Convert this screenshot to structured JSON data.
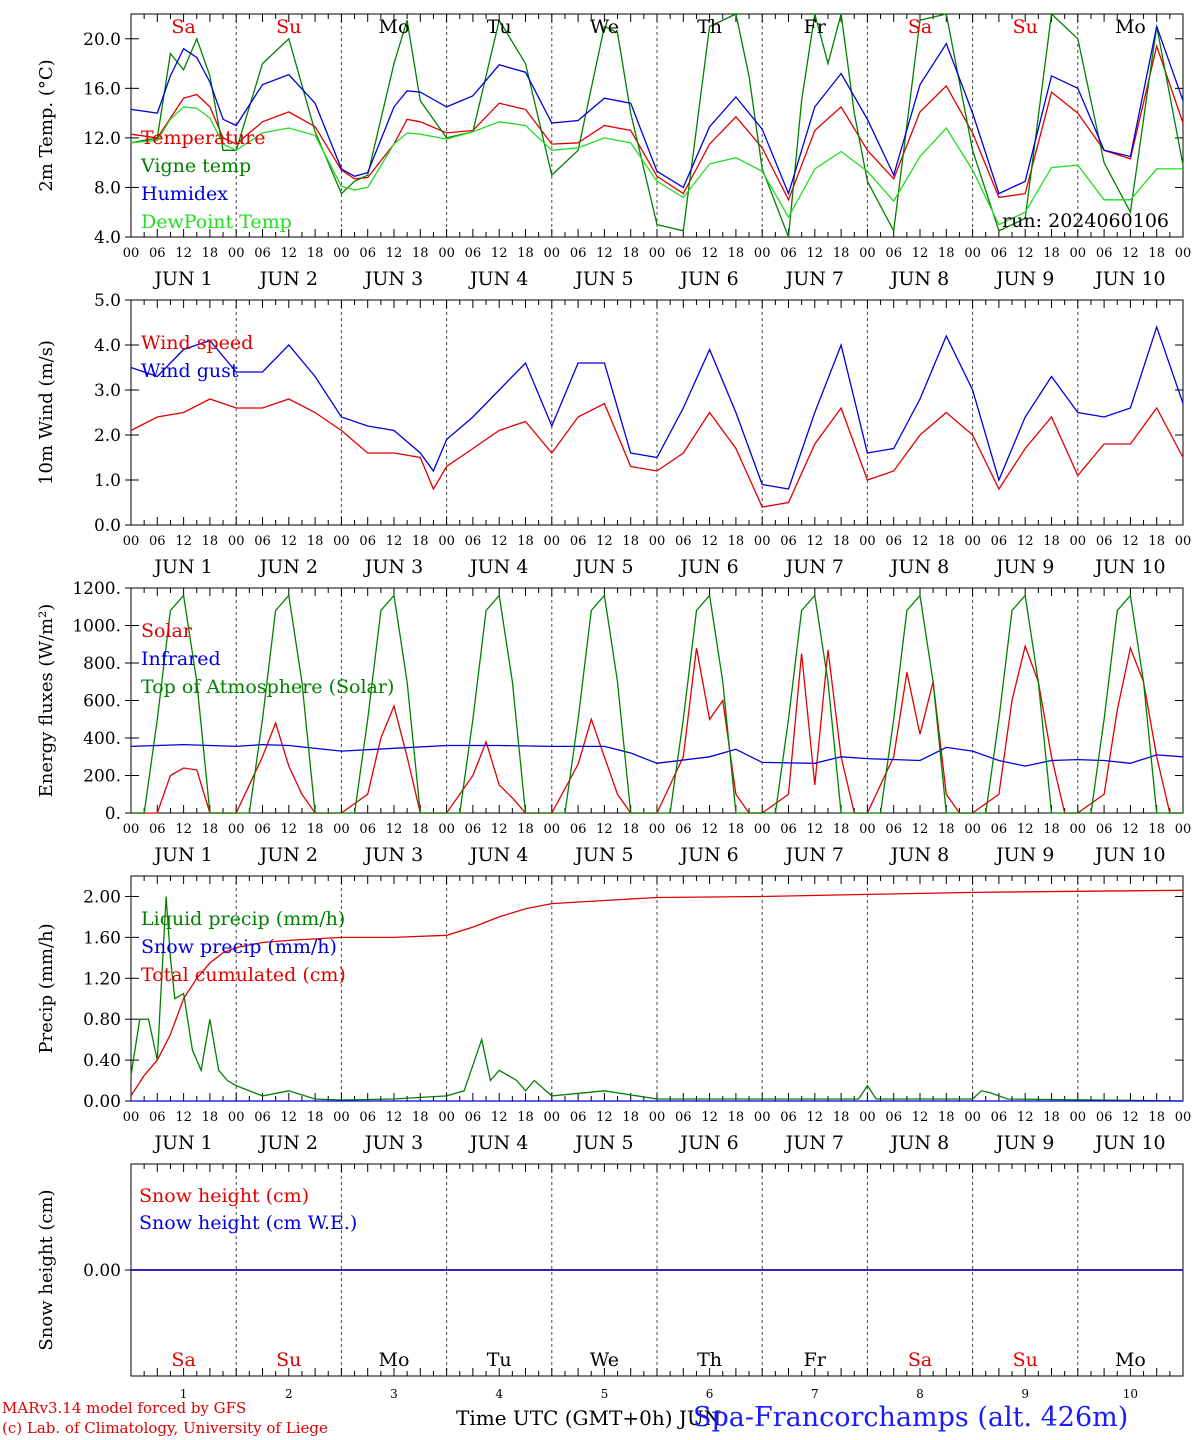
{
  "footer": {
    "credit_line1": "MARv3.14 model forced by GFS",
    "credit_line2": "(c) Lab. of Climatology, University of Liege",
    "xaxis_label": "Time UTC (GMT+0h) JUN",
    "station": "Spa-Francorchamps (alt. 426m)"
  },
  "days": {
    "numbers": [
      "1",
      "2",
      "3",
      "4",
      "5",
      "6",
      "7",
      "8",
      "9",
      "10"
    ],
    "month": "JUN",
    "weekdays": [
      "Sa",
      "Su",
      "Mo",
      "Tu",
      "We",
      "Th",
      "Fr",
      "Sa",
      "Su",
      "Mo"
    ],
    "weekday_colors": [
      "#e00000",
      "#e00000",
      "#000000",
      "#000000",
      "#000000",
      "#000000",
      "#000000",
      "#e00000",
      "#e00000",
      "#000000"
    ],
    "hour_ticks": [
      "00",
      "06",
      "12",
      "18"
    ],
    "final_tick": "00"
  },
  "chart_data": [
    {
      "type": "line",
      "ylabel": "2m Temp. (°C)",
      "ylim": [
        4.0,
        22.0
      ],
      "yticks": [
        "4.0",
        "8.0",
        "12.0",
        "16.0",
        "20.0"
      ],
      "annotation": "run: 2024060106",
      "x_unit": "hours since JUN 1 00 UTC",
      "series": [
        {
          "name": "Temperature",
          "color": "#e00000",
          "x": [
            0,
            6,
            9,
            12,
            15,
            18,
            21,
            24,
            30,
            36,
            42,
            48,
            51,
            54,
            60,
            63,
            66,
            72,
            78,
            84,
            90,
            96,
            102,
            108,
            114,
            120,
            126,
            132,
            138,
            144,
            150,
            156,
            162,
            168,
            174,
            180,
            186,
            192,
            198,
            204,
            210,
            216,
            222,
            228,
            234,
            240
          ],
          "values": [
            12.3,
            12,
            13.6,
            15.2,
            15.5,
            14.5,
            12,
            11.5,
            13.3,
            14.1,
            12.9,
            9.4,
            8.7,
            8.8,
            11.5,
            13.5,
            13.3,
            12.4,
            12.6,
            14.8,
            14.3,
            11.5,
            11.6,
            13,
            12.6,
            8.9,
            7.5,
            11.5,
            13.7,
            11.2,
            7.0,
            12.6,
            14.5,
            11.0,
            8.7,
            14.1,
            16.2,
            12.4,
            7.2,
            7.5,
            15.7,
            14.0,
            11.0,
            10.3,
            19.4,
            13.2
          ]
        },
        {
          "name": "Vigne temp",
          "color": "#008000",
          "x": [
            0,
            6,
            9,
            12,
            15,
            18,
            21,
            24,
            30,
            36,
            42,
            48,
            51,
            54,
            60,
            63,
            66,
            72,
            78,
            84,
            90,
            96,
            102,
            108,
            111,
            114,
            120,
            126,
            132,
            138,
            141,
            144,
            150,
            153,
            156,
            159,
            162,
            165,
            168,
            174,
            180,
            186,
            192,
            198,
            204,
            210,
            216,
            222,
            228,
            234,
            240
          ],
          "values": [
            11.6,
            12.0,
            18.8,
            17.5,
            20.0,
            17.0,
            11.0,
            11.0,
            18.0,
            20.0,
            12.5,
            7.5,
            8.5,
            9.0,
            18.0,
            21.5,
            15.0,
            12.0,
            12.5,
            21.5,
            18.0,
            9.0,
            11.0,
            21.0,
            20.5,
            14.0,
            5.0,
            4.5,
            21.0,
            23.5,
            17.0,
            9.5,
            4.0,
            15.0,
            22.0,
            18.0,
            23.0,
            14.0,
            8.5,
            4.5,
            21.5,
            23.0,
            11.0,
            4.5,
            5.5,
            22.0,
            20.0,
            10.0,
            6.0,
            21.0,
            9.8
          ]
        },
        {
          "name": "Humidex",
          "color": "#0000dd",
          "x": [
            0,
            6,
            9,
            12,
            15,
            18,
            21,
            24,
            30,
            36,
            42,
            48,
            51,
            54,
            60,
            63,
            66,
            72,
            78,
            84,
            90,
            96,
            102,
            108,
            114,
            120,
            126,
            132,
            138,
            144,
            150,
            156,
            162,
            168,
            174,
            180,
            186,
            192,
            198,
            204,
            210,
            216,
            222,
            228,
            234,
            240
          ],
          "values": [
            14.3,
            14.0,
            17.0,
            19.2,
            18.5,
            16.5,
            13.5,
            13.0,
            16.3,
            17.1,
            14.8,
            9.5,
            8.9,
            9.2,
            14.5,
            15.8,
            15.7,
            14.5,
            15.4,
            17.9,
            17.3,
            13.2,
            13.4,
            15.2,
            14.8,
            9.3,
            8.0,
            12.9,
            15.3,
            12.7,
            7.5,
            14.5,
            17.2,
            13.5,
            9.0,
            16.3,
            19.6,
            14.0,
            7.5,
            8.5,
            17.0,
            16.0,
            11.0,
            10.5,
            21.0,
            15.0
          ]
        },
        {
          "name": "DewPoint Temp",
          "color": "#22dd22",
          "x": [
            0,
            6,
            9,
            12,
            15,
            18,
            21,
            24,
            30,
            36,
            42,
            48,
            51,
            54,
            60,
            63,
            66,
            72,
            78,
            84,
            90,
            96,
            102,
            108,
            114,
            120,
            126,
            132,
            138,
            144,
            150,
            156,
            162,
            168,
            174,
            180,
            186,
            192,
            198,
            204,
            210,
            216,
            222,
            228,
            234,
            240
          ],
          "values": [
            11.6,
            11.8,
            13.5,
            14.5,
            14.4,
            13.6,
            11.5,
            11.0,
            12.4,
            12.8,
            12.2,
            8.1,
            7.8,
            8.0,
            11.5,
            12.4,
            12.3,
            11.9,
            12.5,
            13.3,
            13.0,
            11.0,
            11.2,
            12.0,
            11.6,
            8.5,
            7.2,
            9.9,
            10.4,
            9.3,
            5.6,
            9.5,
            10.9,
            9.3,
            6.9,
            10.5,
            12.8,
            9.4,
            5.0,
            6.0,
            9.6,
            9.8,
            7.0,
            7.0,
            9.5,
            9.5
          ]
        }
      ]
    },
    {
      "type": "line",
      "ylabel": "10m Wind (m/s)",
      "ylim": [
        0.0,
        5.0
      ],
      "yticks": [
        "0.0",
        "1.0",
        "2.0",
        "3.0",
        "4.0",
        "5.0"
      ],
      "x_unit": "hours since JUN 1 00 UTC",
      "series": [
        {
          "name": "Wind speed",
          "color": "#e00000",
          "x": [
            0,
            6,
            12,
            18,
            24,
            30,
            36,
            42,
            48,
            54,
            60,
            66,
            69,
            72,
            78,
            84,
            90,
            96,
            102,
            108,
            114,
            120,
            126,
            132,
            138,
            144,
            150,
            156,
            162,
            168,
            174,
            180,
            186,
            192,
            198,
            204,
            210,
            216,
            222,
            228,
            234,
            240
          ],
          "values": [
            2.1,
            2.4,
            2.5,
            2.8,
            2.6,
            2.6,
            2.8,
            2.5,
            2.1,
            1.6,
            1.6,
            1.5,
            0.8,
            1.3,
            1.7,
            2.1,
            2.3,
            1.6,
            2.4,
            2.7,
            1.3,
            1.2,
            1.6,
            2.5,
            1.7,
            0.4,
            0.5,
            1.8,
            2.6,
            1.0,
            1.2,
            2.0,
            2.5,
            2.0,
            0.8,
            1.7,
            2.4,
            1.1,
            1.8,
            1.8,
            2.6,
            1.5
          ]
        },
        {
          "name": "Wind gust",
          "color": "#0000dd",
          "x": [
            0,
            6,
            12,
            18,
            24,
            30,
            36,
            42,
            48,
            54,
            60,
            66,
            69,
            72,
            78,
            84,
            90,
            96,
            102,
            108,
            114,
            120,
            126,
            132,
            138,
            144,
            150,
            156,
            162,
            168,
            174,
            180,
            186,
            192,
            198,
            204,
            210,
            216,
            222,
            228,
            234,
            240
          ],
          "values": [
            3.5,
            3.3,
            3.9,
            4.1,
            3.4,
            3.4,
            4.0,
            3.3,
            2.4,
            2.2,
            2.1,
            1.6,
            1.2,
            1.9,
            2.4,
            3.0,
            3.6,
            2.2,
            3.6,
            3.6,
            1.6,
            1.5,
            2.6,
            3.9,
            2.5,
            0.9,
            0.8,
            2.5,
            4.0,
            1.6,
            1.7,
            2.8,
            4.2,
            3.0,
            1.0,
            2.4,
            3.3,
            2.5,
            2.4,
            2.6,
            4.4,
            2.7
          ]
        }
      ]
    },
    {
      "type": "line",
      "ylabel": "Energy fluxes (W/m²)",
      "ylim": [
        0,
        1200
      ],
      "yticks": [
        "0.",
        "200.",
        "400.",
        "600.",
        "800.",
        "1000.",
        "1200."
      ],
      "x_unit": "hours since JUN 1 00 UTC",
      "series": [
        {
          "name": "Solar",
          "color": "#e00000",
          "x": [
            0,
            6,
            9,
            12,
            15,
            18,
            21,
            24,
            30,
            33,
            36,
            39,
            42,
            45,
            48,
            54,
            57,
            60,
            63,
            66,
            69,
            72,
            78,
            81,
            84,
            87,
            90,
            93,
            96,
            102,
            105,
            108,
            111,
            114,
            117,
            120,
            126,
            129,
            132,
            135,
            138,
            141,
            144,
            150,
            153,
            156,
            159,
            162,
            165,
            168,
            174,
            177,
            180,
            183,
            186,
            189,
            192,
            198,
            201,
            204,
            207,
            210,
            213,
            216,
            222,
            225,
            228,
            231,
            234,
            237,
            240
          ],
          "values": [
            0,
            0,
            200,
            240,
            230,
            0,
            0,
            0,
            300,
            480,
            250,
            100,
            0,
            0,
            0,
            100,
            400,
            570,
            300,
            0,
            0,
            0,
            200,
            380,
            150,
            80,
            0,
            0,
            0,
            260,
            500,
            300,
            100,
            0,
            0,
            0,
            300,
            880,
            500,
            600,
            100,
            0,
            0,
            100,
            850,
            150,
            870,
            300,
            0,
            0,
            300,
            750,
            420,
            700,
            100,
            0,
            0,
            100,
            600,
            890,
            700,
            300,
            0,
            0,
            100,
            550,
            880,
            700,
            300,
            0,
            0
          ]
        },
        {
          "name": "Infrared",
          "color": "#0000dd",
          "x": [
            0,
            12,
            24,
            30,
            36,
            48,
            60,
            72,
            84,
            96,
            108,
            114,
            120,
            132,
            138,
            144,
            156,
            162,
            168,
            180,
            186,
            192,
            198,
            204,
            210,
            216,
            222,
            228,
            234,
            240
          ],
          "values": [
            355,
            365,
            355,
            365,
            360,
            330,
            345,
            360,
            360,
            355,
            355,
            320,
            265,
            300,
            340,
            270,
            265,
            300,
            290,
            280,
            350,
            330,
            280,
            250,
            280,
            285,
            280,
            265,
            310,
            300
          ]
        },
        {
          "name": "Top of Atmosphere (Solar)",
          "color": "#008000",
          "x": [
            0,
            3,
            6,
            9,
            12,
            15,
            18,
            21,
            24
          ],
          "values": [
            0,
            0,
            500,
            1080,
            1160,
            700,
            0,
            0,
            0
          ]
        }
      ]
    },
    {
      "type": "line",
      "ylabel": "Precip (mm/h)",
      "ylim": [
        0.0,
        2.2
      ],
      "yticks": [
        "0.00",
        "0.40",
        "0.80",
        "1.20",
        "1.60",
        "2.00"
      ],
      "x_unit": "hours since JUN 1 00 UTC",
      "series": [
        {
          "name": "Liquid precip (mm/h)",
          "color": "#008000",
          "x": [
            0,
            2,
            4,
            6,
            8,
            9,
            10,
            12,
            14,
            16,
            18,
            20,
            22,
            24,
            30,
            36,
            42,
            48,
            60,
            72,
            76,
            80,
            82,
            84,
            88,
            90,
            92,
            96,
            108,
            120,
            144,
            166,
            168,
            170,
            192,
            194,
            196,
            200,
            240
          ],
          "values": [
            0.25,
            0.8,
            0.8,
            0.4,
            2.0,
            1.4,
            1.0,
            1.05,
            0.5,
            0.3,
            0.8,
            0.3,
            0.2,
            0.15,
            0.05,
            0.1,
            0.02,
            0.01,
            0.02,
            0.05,
            0.1,
            0.6,
            0.2,
            0.3,
            0.2,
            0.1,
            0.2,
            0.05,
            0.1,
            0.02,
            0.02,
            0.02,
            0.15,
            0.02,
            0.02,
            0.1,
            0.08,
            0.02,
            0.0
          ]
        },
        {
          "name": "Snow precip (mm/h)",
          "color": "#0000dd",
          "x": [
            0,
            240
          ],
          "values": [
            0,
            0
          ]
        },
        {
          "name": "Total cumulated (cm)",
          "color": "#e00000",
          "x": [
            0,
            3,
            6,
            9,
            12,
            15,
            18,
            21,
            24,
            30,
            36,
            48,
            60,
            72,
            78,
            84,
            90,
            96,
            108,
            120,
            144,
            168,
            192,
            216,
            240
          ],
          "values": [
            0.05,
            0.25,
            0.4,
            0.65,
            1.0,
            1.2,
            1.35,
            1.45,
            1.5,
            1.55,
            1.57,
            1.6,
            1.6,
            1.62,
            1.7,
            1.8,
            1.88,
            1.93,
            1.96,
            1.99,
            2.0,
            2.02,
            2.04,
            2.05,
            2.06
          ]
        }
      ]
    },
    {
      "type": "line",
      "ylabel": "Snow height (cm)",
      "ylim": [
        -1,
        1
      ],
      "yticks": [
        "0.00"
      ],
      "x_unit": "hours since JUN 1 00 UTC",
      "series": [
        {
          "name": "Snow height (cm)",
          "color": "#e00000",
          "x": [
            0,
            240
          ],
          "values": [
            0,
            0
          ]
        },
        {
          "name": "Snow height (cm W.E.)",
          "color": "#0000dd",
          "x": [
            0,
            240
          ],
          "values": [
            0,
            0
          ]
        }
      ]
    }
  ]
}
